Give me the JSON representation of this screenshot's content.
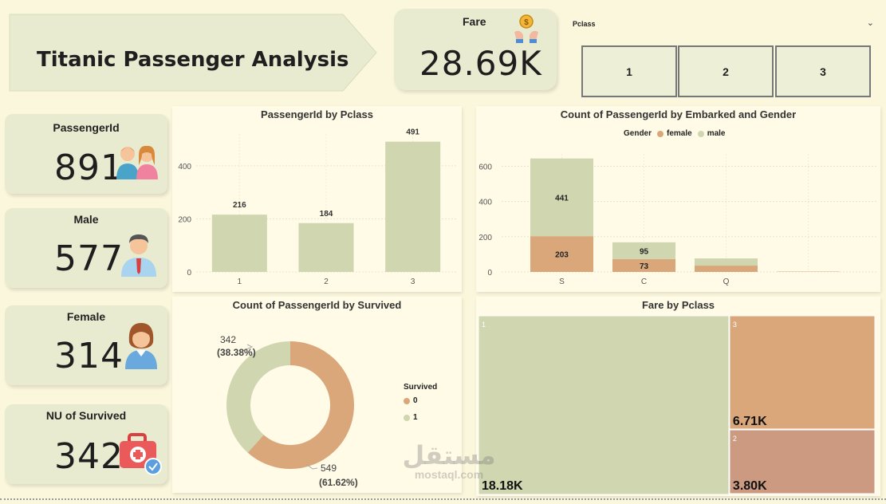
{
  "header": {
    "title": "Titanic Passenger Analysis"
  },
  "fare_card": {
    "label": "Fare",
    "value": "28.69K",
    "icon": "money-hands-icon"
  },
  "slicer": {
    "label": "Pclass",
    "options": [
      "1",
      "2",
      "3"
    ]
  },
  "kpis": [
    {
      "label": "PassengerId",
      "value": "891",
      "icon": "couple-icon"
    },
    {
      "label": "Male",
      "value": "577",
      "icon": "male-person-icon"
    },
    {
      "label": "Female",
      "value": "314",
      "icon": "female-person-icon"
    },
    {
      "label": "NU of Survived",
      "value": "342",
      "icon": "first-aid-kit-icon"
    }
  ],
  "watermark": {
    "arabic": "مستقل",
    "latin": "mostaql.com"
  },
  "colors": {
    "bar": "#cfd6b0",
    "female": "#d9a77a",
    "male": "#cfd6b0",
    "fare3": "#d9a77a",
    "fare2": "#cc9a80"
  },
  "chart_data": [
    {
      "type": "bar",
      "title": "PassengerId by Pclass",
      "categories": [
        "1",
        "2",
        "3"
      ],
      "values": [
        216,
        184,
        491
      ],
      "data_labels": [
        "216",
        "184",
        "491"
      ],
      "yticks": [
        "0",
        "200",
        "400"
      ],
      "ylim": [
        0,
        520
      ]
    },
    {
      "type": "bar",
      "stacked": true,
      "title": "Count of PassengerId by Embarked and Gender",
      "legend_title": "Gender",
      "categories": [
        "S",
        "C",
        "Q",
        ""
      ],
      "series": [
        {
          "name": "female",
          "values": [
            203,
            73,
            36,
            2
          ],
          "labels": [
            "203",
            "73",
            "",
            ""
          ]
        },
        {
          "name": "male",
          "values": [
            441,
            95,
            41,
            0
          ],
          "labels": [
            "441",
            "95",
            "",
            ""
          ]
        }
      ],
      "yticks": [
        "0",
        "200",
        "400",
        "600"
      ],
      "ylim": [
        0,
        670
      ]
    },
    {
      "type": "pie",
      "donut": true,
      "title": "Count of PassengerId by Survived",
      "legend_title": "Survived",
      "slices": [
        {
          "name": "0",
          "value": 549,
          "label": "549",
          "pct": "(61.62%)"
        },
        {
          "name": "1",
          "value": 342,
          "label": "342",
          "pct": "(38.38%)"
        }
      ]
    },
    {
      "type": "treemap",
      "title": "Fare by Pclass",
      "items": [
        {
          "name": "1",
          "value": 18.18,
          "label": "18.18K"
        },
        {
          "name": "3",
          "value": 6.71,
          "label": "6.71K"
        },
        {
          "name": "2",
          "value": 3.8,
          "label": "3.80K"
        }
      ]
    }
  ]
}
